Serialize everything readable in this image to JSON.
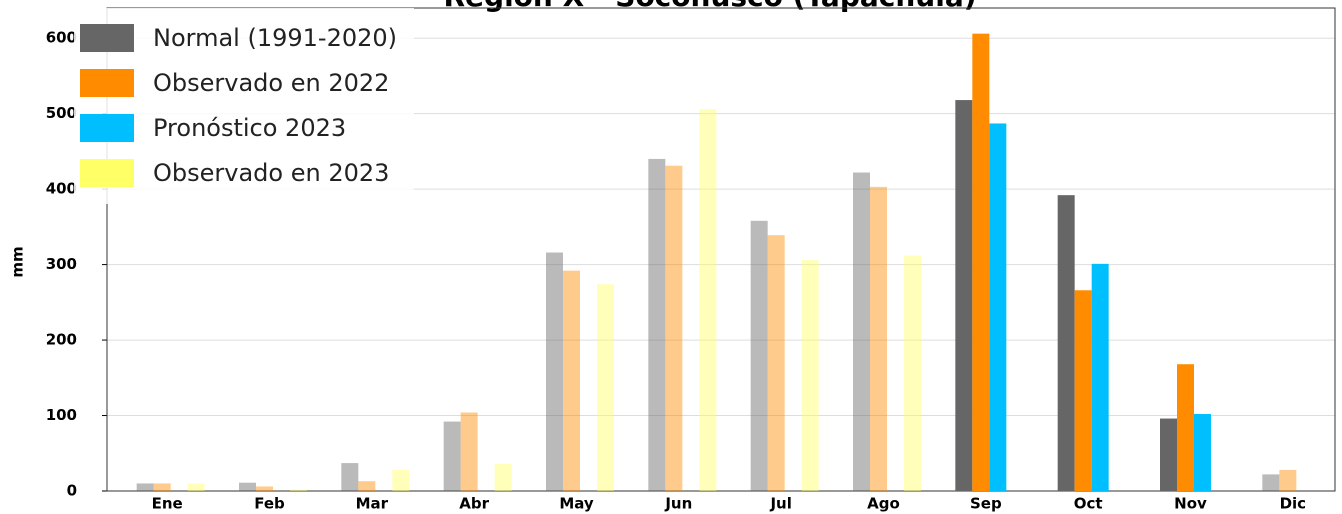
{
  "chart_data": {
    "type": "bar",
    "title": "Región X - Soconusco (Tapachula)",
    "y_label": "mm",
    "categories": [
      "Ene",
      "Feb",
      "Mar",
      "Abr",
      "May",
      "Jun",
      "Jul",
      "Ago",
      "Sep",
      "Oct",
      "Nov",
      "Dic"
    ],
    "series": [
      {
        "name": "Normal (1991-2020)",
        "color": "#666666",
        "values": [
          10,
          11,
          37,
          92,
          316,
          440,
          358,
          422,
          518,
          392,
          96,
          22
        ]
      },
      {
        "name": "Observado en 2022",
        "color": "#ff8c00",
        "values": [
          10,
          6,
          13,
          104,
          292,
          431,
          339,
          403,
          606,
          266,
          168,
          28
        ]
      },
      {
        "name": "Pronóstico 2023",
        "color": "#00bfff",
        "values": [
          null,
          null,
          null,
          null,
          null,
          null,
          null,
          null,
          487,
          301,
          102,
          null
        ]
      },
      {
        "name": "Observado en 2023",
        "color": "#ffff66",
        "values": [
          10,
          2,
          28,
          36,
          274,
          506,
          306,
          312,
          null,
          null,
          null,
          null
        ]
      }
    ],
    "category_alpha": [
      0.45,
      0.45,
      0.45,
      0.45,
      0.45,
      0.45,
      0.45,
      0.45,
      1,
      1,
      1,
      0.45
    ],
    "ylim": [
      0,
      640
    ],
    "yticks": [
      0,
      100,
      200,
      300,
      400,
      500,
      600
    ],
    "grid": true,
    "legend": "upper left"
  }
}
